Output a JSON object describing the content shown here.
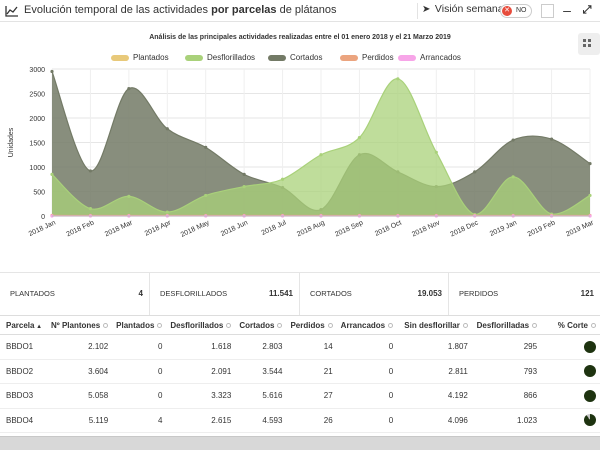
{
  "header": {
    "title_pre": "Evolución temporal de las actividades ",
    "title_bold": "por parcelas",
    "title_post": " de plátanos",
    "vision_label": "Visión semanal",
    "toggle_label": "NO",
    "toggle_x": "✕",
    "minimize_glyph": "‒",
    "expand_glyph": "⤢",
    "arrow_glyph": "➤"
  },
  "chart_data": {
    "type": "area",
    "title": "Análisis de las principales actividades realizadas entre el 01 enero 2018 y el 21 Marzo 2019",
    "ylabel": "Unidades",
    "ylim": [
      0,
      3000
    ],
    "yticks": [
      "0",
      "500",
      "1000",
      "1500",
      "2000",
      "2500",
      "3000"
    ],
    "grid": true,
    "legend_position": "top",
    "x": [
      "2018 Jan",
      "2018 Feb",
      "2018 Mar",
      "2018 Apr",
      "2018 May",
      "2018 Jun",
      "2018 Jul",
      "2018 Aug",
      "2018 Sep",
      "2018 Oct",
      "2018 Nov",
      "2018 Dec",
      "2019 Jan",
      "2019 Feb",
      "2019 Mar"
    ],
    "series": [
      {
        "name": "Plantados",
        "color": "#e8c97a",
        "values": [
          10,
          5,
          5,
          5,
          5,
          5,
          5,
          5,
          5,
          5,
          5,
          5,
          5,
          5,
          5
        ]
      },
      {
        "name": "Desflorillados",
        "color": "#a9d17a",
        "values": [
          850,
          150,
          400,
          80,
          420,
          600,
          750,
          1250,
          1600,
          2800,
          1300,
          30,
          800,
          40,
          420
        ]
      },
      {
        "name": "Cortados",
        "color": "#737a66",
        "values": [
          2950,
          920,
          2600,
          1780,
          1400,
          850,
          580,
          130,
          1250,
          900,
          600,
          900,
          1550,
          1570,
          1070
        ]
      },
      {
        "name": "Perdidos",
        "color": "#eba47f",
        "values": [
          10,
          10,
          10,
          10,
          10,
          10,
          10,
          10,
          10,
          10,
          10,
          10,
          10,
          10,
          10
        ]
      },
      {
        "name": "Arrancados",
        "color": "#f7a5e8",
        "values": [
          0,
          0,
          0,
          0,
          0,
          0,
          0,
          0,
          0,
          0,
          0,
          0,
          0,
          0,
          0
        ]
      }
    ]
  },
  "summary": [
    {
      "label": "PLANTADOS",
      "value": "4"
    },
    {
      "label": "DESFLORILLADOS",
      "value": "11.541"
    },
    {
      "label": "CORTADOS",
      "value": "19.053"
    },
    {
      "label": "PERDIDOS",
      "value": "121"
    }
  ],
  "table": {
    "headers": [
      "Parcela",
      "Nº Plantones",
      "Plantados",
      "Desflorillados",
      "Cortados",
      "Perdidos",
      "Arrancados",
      "Sin desflorillar",
      "Desflorilladas",
      "% Corte"
    ],
    "sort_indicator": "▲",
    "rows": [
      [
        "BBDO1",
        "2.102",
        "0",
        "1.618",
        "2.803",
        "14",
        "0",
        "1.807",
        "295"
      ],
      [
        "BBDO2",
        "3.604",
        "0",
        "2.091",
        "3.544",
        "21",
        "0",
        "2.811",
        "793"
      ],
      [
        "BBDO3",
        "5.058",
        "0",
        "3.323",
        "5.616",
        "27",
        "0",
        "4.192",
        "866"
      ],
      [
        "BBDO4",
        "5.119",
        "4",
        "2.615",
        "4.593",
        "26",
        "0",
        "4.096",
        "1.023"
      ]
    ],
    "corte_pct": [
      1.0,
      1.0,
      1.0,
      0.9
    ]
  }
}
